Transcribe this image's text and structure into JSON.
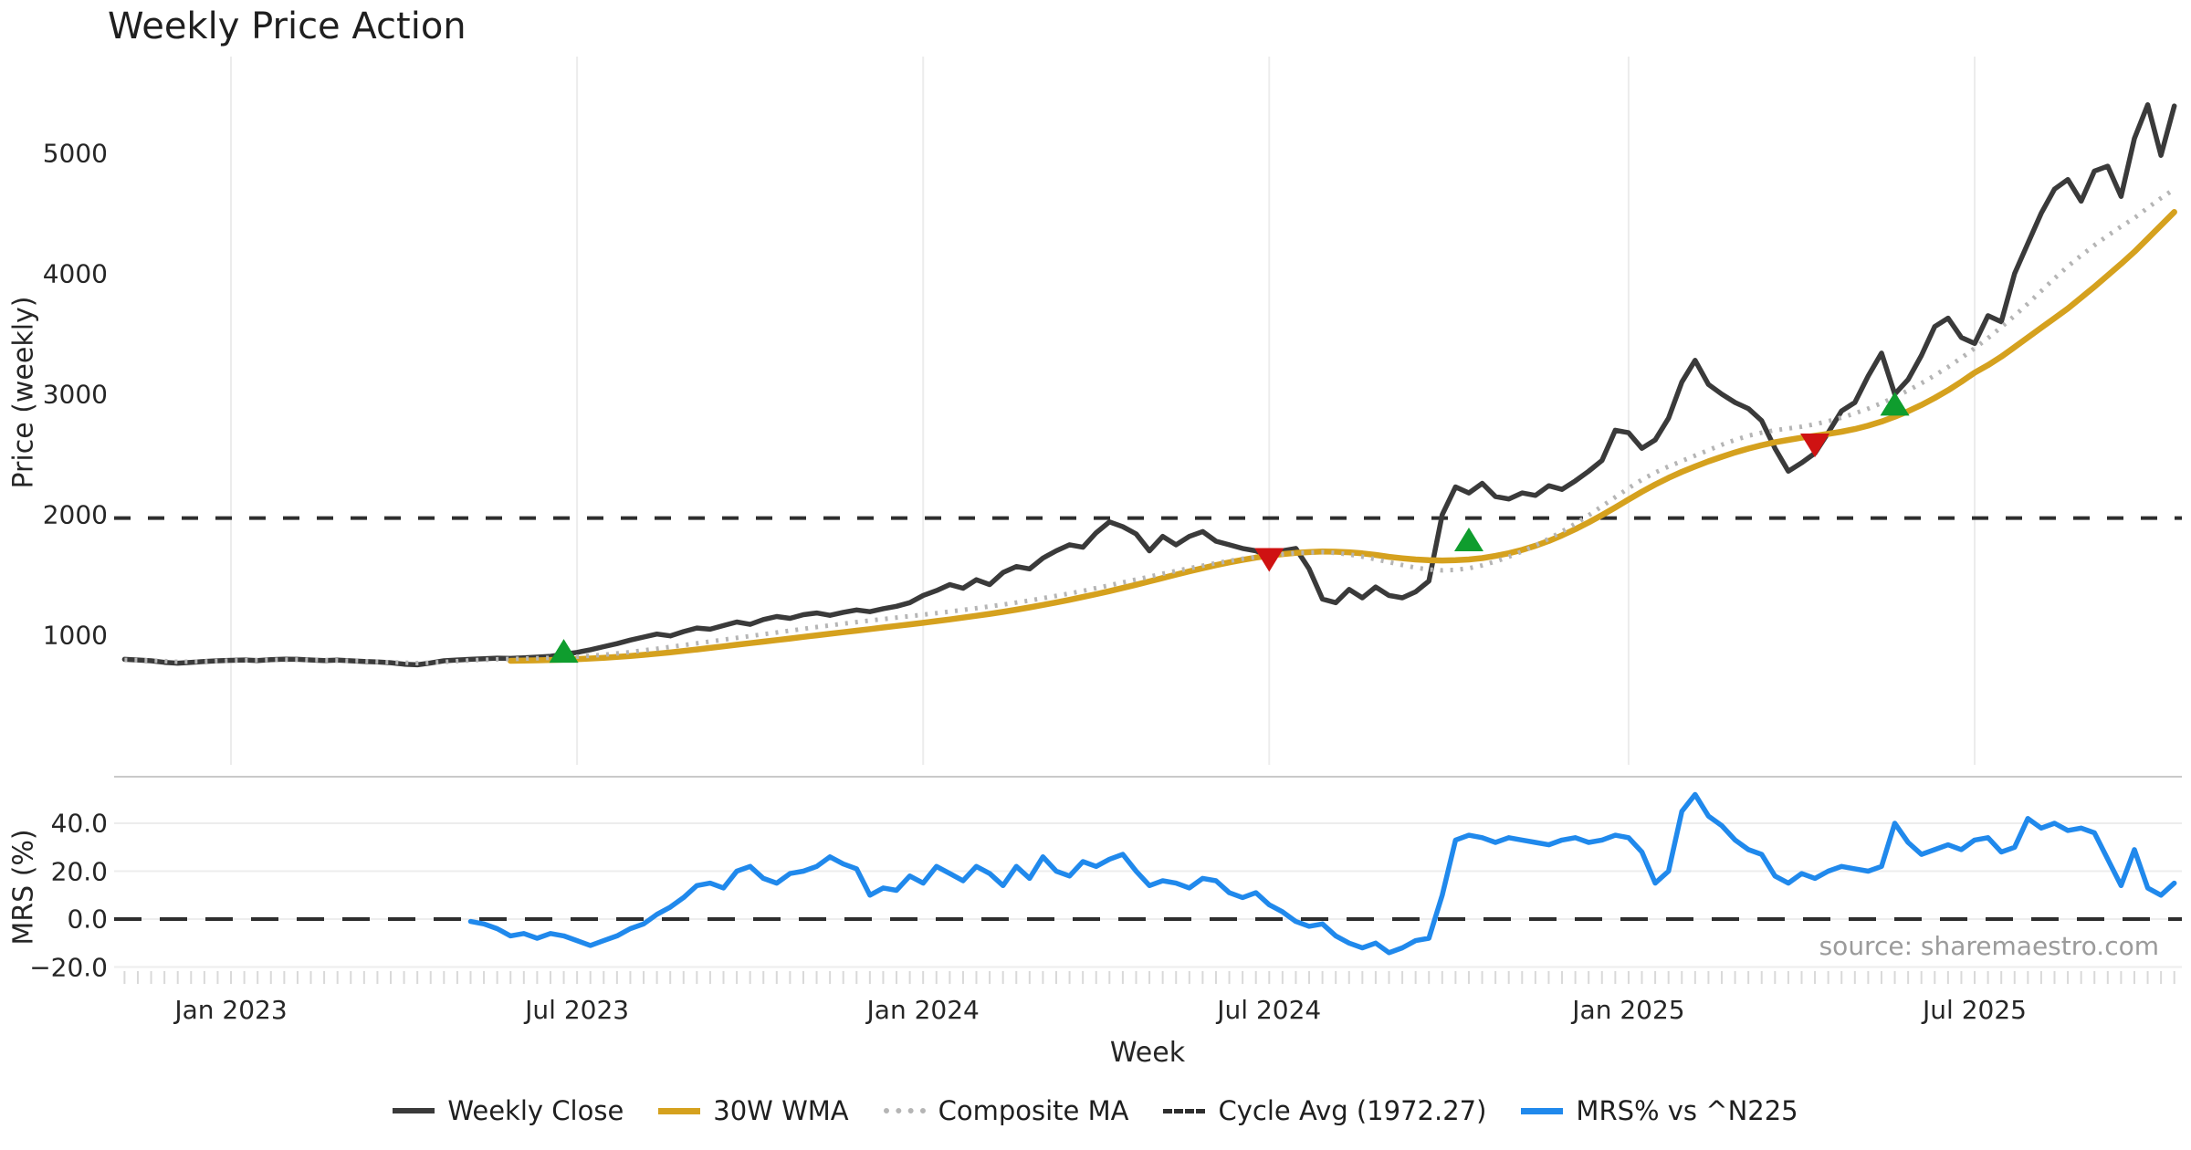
{
  "title": "Weekly Price Action",
  "source_note": "source: sharemaestro.com",
  "colors": {
    "weekly_close": "#3a3a3a",
    "wma": "#d5a11e",
    "composite": "#b5b5b5",
    "cycle_avg": "#2e2e2e",
    "mrs": "#2089ec",
    "buy_marker": "#0f9d2e",
    "sell_marker": "#cf1212",
    "grid": "#ececec",
    "grid_h": "#ededed",
    "panel_border": "#c9c9c9",
    "minor_tick": "#d9d9d9",
    "text": "#262626",
    "source_text": "#9b9b9b"
  },
  "chart_data": {
    "type": "line",
    "title": "Weekly Price Action",
    "xlabel": "Week",
    "x_tick_labels": [
      "Jan 2023",
      "Jul 2023",
      "Jan 2024",
      "Jul 2024",
      "Jan 2025",
      "Jul 2025"
    ],
    "x_tick_weeks": [
      8,
      34,
      60,
      86,
      113,
      139
    ],
    "weeks_total": 155,
    "legend_position": "bottom-center",
    "grid": "vertical-top-panel, horizontal-bottom-panel",
    "top_panel": {
      "ylabel": "Price (weekly)",
      "yticks": [
        1000,
        2000,
        3000,
        4000,
        5000
      ],
      "ylim": [
        620,
        5800
      ],
      "cycle_avg_value": 1972.27,
      "series": [
        {
          "name": "Weekly Close",
          "style": "solid",
          "color_key": "weekly_close",
          "start_week": 0,
          "values": [
            800,
            795,
            788,
            775,
            768,
            775,
            782,
            788,
            792,
            795,
            790,
            798,
            802,
            800,
            795,
            790,
            793,
            788,
            782,
            778,
            772,
            760,
            755,
            770,
            788,
            795,
            800,
            805,
            810,
            808,
            812,
            818,
            825,
            842,
            858,
            880,
            905,
            930,
            960,
            985,
            1010,
            995,
            1030,
            1060,
            1050,
            1080,
            1110,
            1090,
            1130,
            1155,
            1140,
            1170,
            1185,
            1165,
            1190,
            1210,
            1195,
            1220,
            1240,
            1270,
            1330,
            1370,
            1420,
            1390,
            1460,
            1420,
            1520,
            1570,
            1550,
            1640,
            1700,
            1750,
            1730,
            1850,
            1940,
            1900,
            1840,
            1700,
            1820,
            1750,
            1820,
            1860,
            1780,
            1750,
            1720,
            1700,
            1650,
            1700,
            1720,
            1550,
            1300,
            1270,
            1380,
            1310,
            1400,
            1330,
            1310,
            1360,
            1450,
            2000,
            2230,
            2180,
            2260,
            2150,
            2130,
            2180,
            2160,
            2240,
            2210,
            2280,
            2360,
            2450,
            2700,
            2680,
            2550,
            2620,
            2800,
            3100,
            3280,
            3080,
            3000,
            2930,
            2880,
            2780,
            2550,
            2360,
            2430,
            2510,
            2680,
            2860,
            2930,
            3150,
            3340,
            3000,
            3120,
            3320,
            3560,
            3630,
            3470,
            3420,
            3650,
            3600,
            4000,
            4250,
            4500,
            4700,
            4780,
            4600,
            4850,
            4890,
            4640,
            5120,
            5400,
            4980,
            5390
          ]
        },
        {
          "name": "30W WMA",
          "style": "solid",
          "color_key": "wma",
          "start_week": 29,
          "values": [
            788,
            790,
            792,
            795,
            798,
            802,
            807,
            813,
            820,
            828,
            837,
            847,
            858,
            870,
            882,
            895,
            908,
            921,
            934,
            947,
            960,
            973,
            986,
            999,
            1012,
            1025,
            1038,
            1051,
            1064,
            1077,
            1090,
            1103,
            1117,
            1131,
            1146,
            1161,
            1177,
            1194,
            1212,
            1231,
            1251,
            1272,
            1294,
            1317,
            1341,
            1366,
            1392,
            1419,
            1447,
            1475,
            1503,
            1530,
            1556,
            1581,
            1604,
            1625,
            1644,
            1660,
            1673,
            1683,
            1690,
            1694,
            1693,
            1688,
            1679,
            1666,
            1650,
            1638,
            1628,
            1622,
            1620,
            1622,
            1628,
            1640,
            1658,
            1680,
            1708,
            1742,
            1782,
            1828,
            1880,
            1936,
            1996,
            2060,
            2126,
            2190,
            2250,
            2305,
            2355,
            2400,
            2442,
            2480,
            2516,
            2548,
            2576,
            2600,
            2620,
            2638,
            2654,
            2670,
            2688,
            2710,
            2738,
            2772,
            2812,
            2858,
            2910,
            2968,
            3032,
            3102,
            3178,
            3240,
            3310,
            3390,
            3470,
            3550,
            3630,
            3710,
            3800,
            3890,
            3985,
            4080,
            4180,
            4290,
            4400,
            4510
          ]
        },
        {
          "name": "Composite MA",
          "style": "dotted",
          "color_key": "composite",
          "start_week": 0,
          "values": [
            795,
            793,
            790,
            785,
            780,
            781,
            783,
            786,
            790,
            792,
            793,
            795,
            798,
            797,
            795,
            793,
            791,
            788,
            785,
            780,
            776,
            772,
            768,
            773,
            778,
            785,
            792,
            796,
            800,
            803,
            806,
            809,
            812,
            817,
            822,
            830,
            838,
            849,
            860,
            874,
            888,
            903,
            918,
            933,
            948,
            963,
            978,
            993,
            1008,
            1023,
            1038,
            1053,
            1068,
            1082,
            1096,
            1109,
            1122,
            1134,
            1146,
            1158,
            1170,
            1183,
            1196,
            1210,
            1224,
            1239,
            1254,
            1271,
            1288,
            1307,
            1326,
            1347,
            1368,
            1391,
            1414,
            1438,
            1462,
            1486,
            1510,
            1533,
            1556,
            1577,
            1598,
            1616,
            1634,
            1648,
            1662,
            1672,
            1682,
            1686,
            1690,
            1682,
            1670,
            1652,
            1630,
            1606,
            1582,
            1560,
            1545,
            1538,
            1542,
            1556,
            1580,
            1612,
            1650,
            1695,
            1745,
            1800,
            1860,
            1925,
            1995,
            2070,
            2145,
            2220,
            2290,
            2350,
            2400,
            2445,
            2490,
            2535,
            2580,
            2620,
            2655,
            2680,
            2700,
            2715,
            2730,
            2750,
            2775,
            2805,
            2840,
            2880,
            2925,
            2975,
            3030,
            3090,
            3155,
            3225,
            3300,
            3380,
            3465,
            3555,
            3650,
            3750,
            3855,
            3960,
            4060,
            4150,
            4235,
            4315,
            4390,
            4460,
            4545,
            4625,
            4700
          ]
        }
      ],
      "markers": [
        {
          "type": "buy",
          "week": 33,
          "value": 855,
          "direction": "up"
        },
        {
          "type": "sell",
          "week": 86,
          "value": 1640,
          "direction": "down"
        },
        {
          "type": "buy",
          "week": 101,
          "value": 1780,
          "direction": "up"
        },
        {
          "type": "sell",
          "week": 127,
          "value": 2590,
          "direction": "down"
        },
        {
          "type": "buy",
          "week": 133,
          "value": 2905,
          "direction": "up"
        }
      ]
    },
    "bottom_panel": {
      "ylabel": "MRS (%)",
      "yticks": [
        40.0,
        20.0,
        0.0,
        -20.0
      ],
      "ytick_labels": [
        "40.0",
        "20.0",
        "0.0",
        "−20.0"
      ],
      "ylim": [
        -27,
        60
      ],
      "zero_line_dashed": true,
      "series": [
        {
          "name": "MRS% vs ^N225",
          "style": "solid",
          "color_key": "mrs",
          "start_week": 26,
          "values": [
            -1,
            -2,
            -4,
            -7,
            -6,
            -8,
            -6,
            -7,
            -9,
            -11,
            -9,
            -7,
            -4,
            -2,
            2,
            5,
            9,
            14,
            15,
            13,
            20,
            22,
            17,
            15,
            19,
            20,
            22,
            26,
            23,
            21,
            10,
            13,
            12,
            18,
            15,
            22,
            19,
            16,
            22,
            19,
            14,
            22,
            17,
            26,
            20,
            18,
            24,
            22,
            25,
            27,
            20,
            14,
            16,
            15,
            13,
            17,
            16,
            11,
            9,
            11,
            6,
            3,
            -1,
            -3,
            -2,
            -7,
            -10,
            -12,
            -10,
            -14,
            -12,
            -9,
            -8,
            10,
            33,
            35,
            34,
            32,
            34,
            33,
            32,
            31,
            33,
            34,
            32,
            33,
            35,
            34,
            28,
            15,
            20,
            45,
            52,
            43,
            39,
            33,
            29,
            27,
            18,
            15,
            19,
            17,
            20,
            22,
            21,
            20,
            22,
            40,
            32,
            27,
            29,
            31,
            29,
            33,
            34,
            28,
            30,
            42,
            38,
            40,
            37,
            38,
            36,
            25,
            14,
            29,
            13,
            10,
            15
          ]
        }
      ]
    },
    "legend": [
      {
        "label": "Weekly Close",
        "style": "solid",
        "color_key": "weekly_close",
        "thickness": 6
      },
      {
        "label": "30W WMA",
        "style": "solid",
        "color_key": "wma",
        "thickness": 7
      },
      {
        "label": "Composite MA",
        "style": "dotted",
        "color_key": "composite",
        "thickness": 6
      },
      {
        "label": "Cycle Avg (1972.27)",
        "style": "dashed",
        "color_key": "cycle_avg",
        "thickness": 5
      },
      {
        "label": "MRS% vs ^N225",
        "style": "solid",
        "color_key": "mrs",
        "thickness": 7
      }
    ]
  }
}
